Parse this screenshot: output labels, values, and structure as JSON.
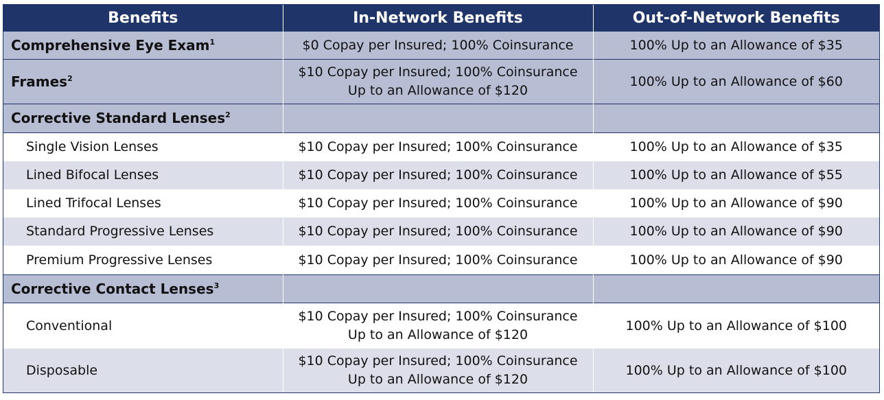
{
  "headers": [
    "Benefits",
    "In-Network Benefits",
    "Out-of-Network Benefits"
  ],
  "sections": [
    {
      "label": "Comprehensive Eye Exam",
      "sup": "1",
      "in_network": [
        "$0 Copay per Insured; 100% Coinsurance"
      ],
      "out_network": "100% Up to an Allowance of $35"
    },
    {
      "label": "Frames",
      "sup": "2",
      "in_network": [
        "$10 Copay per Insured; 100% Coinsurance",
        "Up to an Allowance of $120"
      ],
      "out_network": "100% Up to an Allowance of $60"
    },
    {
      "label": "Corrective Standard Lenses",
      "sup": "2"
    },
    {
      "label": "Corrective Contact Lenses",
      "sup": "3"
    }
  ],
  "standard_lenses": [
    {
      "label": "Single Vision Lenses",
      "in_network": "$10 Copay per Insured; 100% Coinsurance",
      "out_network": "100% Up to an Allowance of $35"
    },
    {
      "label": "Lined Bifocal Lenses",
      "in_network": "$10 Copay per Insured; 100% Coinsurance",
      "out_network": "100% Up to an Allowance of $55"
    },
    {
      "label": "Lined Trifocal Lenses",
      "in_network": "$10 Copay per Insured; 100% Coinsurance",
      "out_network": "100% Up to an Allowance of $90"
    },
    {
      "label": "Standard Progressive Lenses",
      "in_network": "$10 Copay per Insured; 100% Coinsurance",
      "out_network": "100% Up to an Allowance of $90"
    },
    {
      "label": "Premium Progressive Lenses",
      "in_network": "$10 Copay per Insured; 100% Coinsurance",
      "out_network": "100% Up to an Allowance of $90"
    }
  ],
  "contact_lenses": [
    {
      "label": "Conventional",
      "in_network": [
        "$10 Copay per Insured; 100% Coinsurance",
        "Up to an Allowance of $120"
      ],
      "out_network": "100% Up to an Allowance of $100"
    },
    {
      "label": "Disposable",
      "in_network": [
        "$10 Copay per Insured; 100% Coinsurance",
        "Up to an Allowance of $120"
      ],
      "out_network": "100% Up to an Allowance of $100"
    }
  ],
  "colors": {
    "header_bg": "#1f3468",
    "section_bg": "#b7bdd3",
    "alt_row_bg": "#dcdfe9"
  }
}
